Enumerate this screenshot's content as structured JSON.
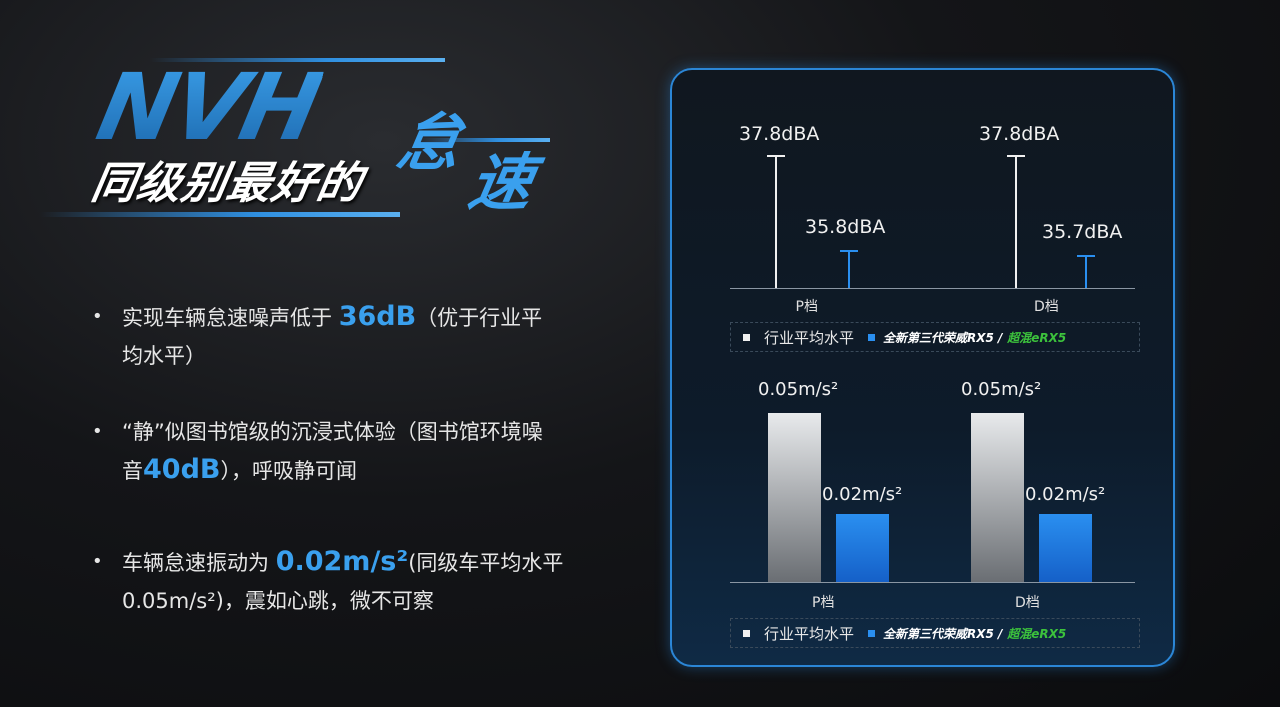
{
  "header": {
    "logo_text": "NVH",
    "subtitle": "同级别最好的",
    "highlight_1": "怠",
    "highlight_2": "速"
  },
  "bullets": [
    {
      "pre": "实现车辆怠速噪声低于 ",
      "hl": "36dB",
      "post": "（优于行业平均水平）"
    },
    {
      "pre": "“静”似图书馆级的沉浸式体验（图书馆环境噪音",
      "hl": "40dB",
      "post": "），呼吸静可闻"
    },
    {
      "pre": "车辆怠速振动为 ",
      "hl": "0.02m/s²",
      "post": "(同级车平均水平0.05m/s²)，震如心跳，微不可察"
    }
  ],
  "colors": {
    "accent": "#3aa0ee",
    "industry": "#f0f0f0",
    "ours": "#2a8ff0",
    "green": "#3cc23c"
  },
  "chart_data": [
    {
      "type": "bar",
      "style": "stem",
      "categories": [
        "P档",
        "D档"
      ],
      "series": [
        {
          "name": "行业平均水平",
          "values": [
            37.8,
            37.8
          ],
          "labels": [
            "37.8dBA",
            "37.8dBA"
          ]
        },
        {
          "name": "全新第三代荣威RX5 / 超混eRX5",
          "values": [
            35.8,
            35.7
          ],
          "labels": [
            "35.8dBA",
            "35.7dBA"
          ]
        }
      ],
      "unit": "dBA",
      "legend": "bottom",
      "grid": false
    },
    {
      "type": "bar",
      "categories": [
        "P档",
        "D档"
      ],
      "series": [
        {
          "name": "行业平均水平",
          "values": [
            0.05,
            0.05
          ],
          "labels": [
            "0.05m/s²",
            "0.05m/s²"
          ]
        },
        {
          "name": "全新第三代荣威RX5 / 超混eRX5",
          "values": [
            0.02,
            0.02
          ],
          "labels": [
            "0.02m/s²",
            "0.02m/s²"
          ]
        }
      ],
      "unit": "m/s²",
      "legend": "bottom",
      "grid": false
    }
  ],
  "legend": {
    "industry": "行业平均水平",
    "ours_brand": "全新第三代荣威RX5 /",
    "ours_green": "超混eRX5"
  }
}
